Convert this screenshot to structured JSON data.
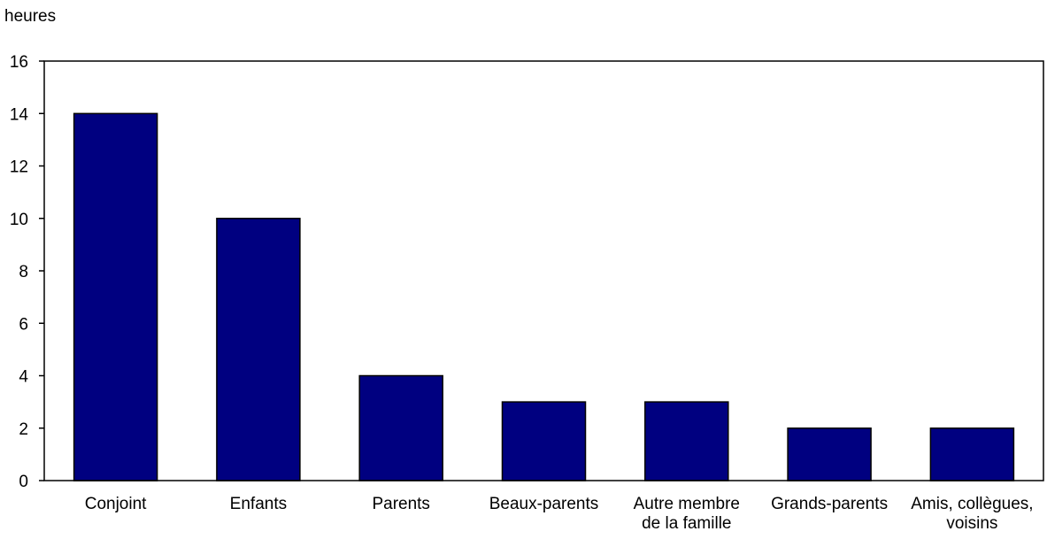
{
  "chart_data": {
    "type": "bar",
    "title": "",
    "xlabel": "",
    "ylabel": "heures",
    "ylim": [
      0,
      16
    ],
    "yticks": [
      0,
      2,
      4,
      6,
      8,
      10,
      12,
      14,
      16
    ],
    "grid": false,
    "legend": "none",
    "categories": [
      [
        "Conjoint"
      ],
      [
        "Enfants"
      ],
      [
        "Parents"
      ],
      [
        "Beaux-parents"
      ],
      [
        "Autre membre",
        "de la famille"
      ],
      [
        "Grands-parents"
      ],
      [
        "Amis, collègues,",
        "voisins"
      ]
    ],
    "values": [
      14,
      10,
      4,
      3,
      3,
      2,
      2
    ],
    "bar_color": "#000080",
    "axis_color": "#000000"
  }
}
